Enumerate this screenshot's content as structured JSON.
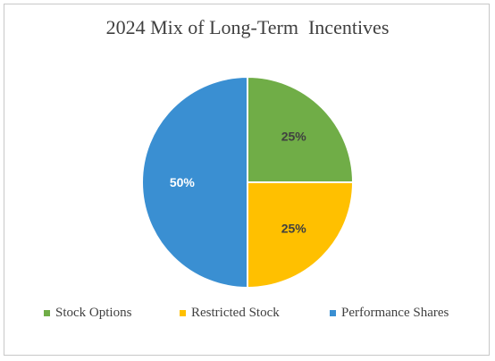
{
  "chart_data": {
    "type": "pie",
    "title": "2024 Mix of Long-Term  Incentives",
    "series": [
      {
        "name": "Stock Options",
        "value": 25,
        "label": "25%",
        "color": "#70ad47"
      },
      {
        "name": "Restricted Stock",
        "value": 25,
        "label": "25%",
        "color": "#ffc000"
      },
      {
        "name": "Performance Shares",
        "value": 50,
        "label": "50%",
        "color": "#3a8fd2"
      }
    ],
    "legend_position": "bottom"
  }
}
